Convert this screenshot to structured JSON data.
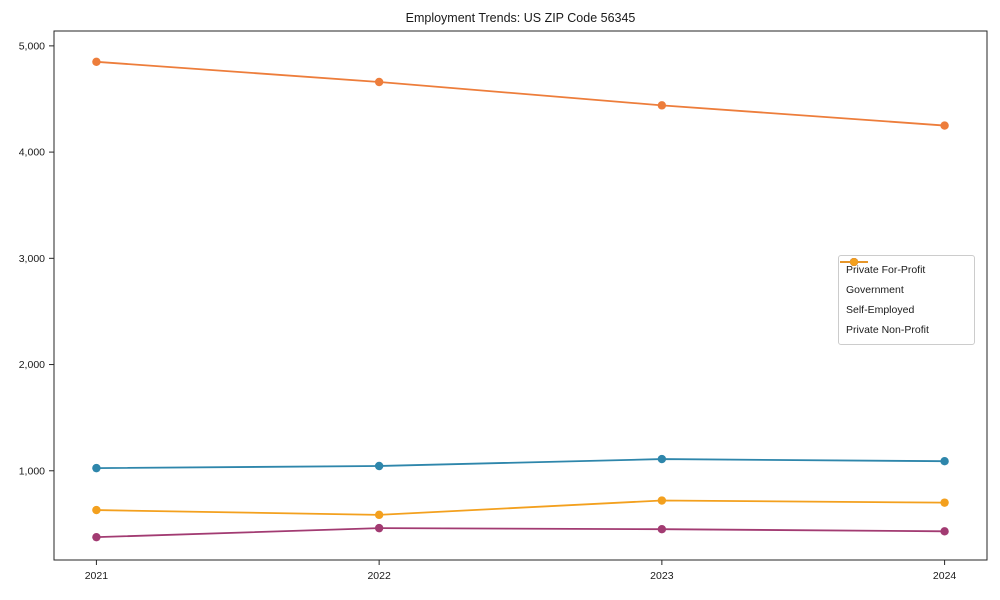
{
  "chart_data": {
    "type": "line",
    "title": "Employment Trends: US ZIP Code 56345",
    "xlabel": "",
    "ylabel": "",
    "x": [
      2021,
      2022,
      2023,
      2024
    ],
    "x_tick_labels": [
      "2021",
      "2022",
      "2023",
      "2024"
    ],
    "y_tick_values": [
      1000,
      2000,
      3000,
      4000,
      5000
    ],
    "y_tick_labels": [
      "1,000",
      "2,000",
      "3,000",
      "4,000",
      "5,000"
    ],
    "xlim": [
      2020.85,
      2024.15
    ],
    "ylim": [
      160,
      5140
    ],
    "grid": false,
    "legend_position": "center-right",
    "series": [
      {
        "name": "Private For-Profit",
        "color": "#ED7D3B",
        "values": [
          4850,
          4660,
          4440,
          4250
        ]
      },
      {
        "name": "Government",
        "color": "#2E86AB",
        "values": [
          1025,
          1045,
          1110,
          1090
        ]
      },
      {
        "name": "Self-Employed",
        "color": "#A23B72",
        "values": [
          375,
          460,
          450,
          430
        ]
      },
      {
        "name": "Private Non-Profit",
        "color": "#F3A01E",
        "values": [
          630,
          585,
          720,
          700
        ]
      }
    ],
    "text_color": "#1a1a1a",
    "spine_color": "#262626",
    "background_color": "#ffffff"
  }
}
